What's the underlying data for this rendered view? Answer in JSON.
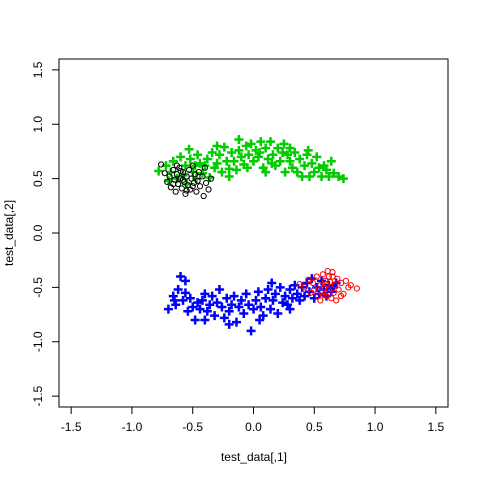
{
  "chart_data": {
    "type": "scatter",
    "xlabel": "test_data[,1]",
    "ylabel": "test_data[,2]",
    "xlim": [
      -1.6,
      1.6
    ],
    "ylim": [
      -1.6,
      1.6
    ],
    "x_ticks": [
      -1.5,
      -1.0,
      -0.5,
      0.0,
      0.5,
      1.0,
      1.5
    ],
    "y_ticks": [
      -1.5,
      -1.0,
      -0.5,
      0.0,
      0.5,
      1.0,
      1.5
    ],
    "x_tick_labels": [
      "-1.5",
      "-1.0",
      "-0.5",
      "0.0",
      "0.5",
      "1.0",
      "1.5"
    ],
    "y_tick_labels": [
      "-1.5",
      "-1.0",
      "-0.5",
      "0.0",
      "0.5",
      "1.0",
      "1.5"
    ],
    "grid": false,
    "series": [
      {
        "marker": "plus",
        "color": "#00cc00",
        "points": [
          [
            -0.78,
            0.57
          ],
          [
            -0.72,
            0.62
          ],
          [
            -0.7,
            0.48
          ],
          [
            -0.68,
            0.56
          ],
          [
            -0.66,
            0.66
          ],
          [
            -0.63,
            0.5
          ],
          [
            -0.6,
            0.7
          ],
          [
            -0.58,
            0.53
          ],
          [
            -0.56,
            0.62
          ],
          [
            -0.55,
            0.45
          ],
          [
            -0.53,
            0.77
          ],
          [
            -0.52,
            0.68
          ],
          [
            -0.5,
            0.56
          ],
          [
            -0.48,
            0.62
          ],
          [
            -0.47,
            0.5
          ],
          [
            -0.46,
            0.72
          ],
          [
            -0.44,
            0.64
          ],
          [
            -0.42,
            0.55
          ],
          [
            -0.4,
            0.62
          ],
          [
            -0.38,
            0.68
          ],
          [
            -0.36,
            0.51
          ],
          [
            -0.34,
            0.74
          ],
          [
            -0.32,
            0.6
          ],
          [
            -0.3,
            0.64
          ],
          [
            -0.28,
            0.72
          ],
          [
            -0.26,
            0.56
          ],
          [
            -0.24,
            0.79
          ],
          [
            -0.22,
            0.66
          ],
          [
            -0.2,
            0.59
          ],
          [
            -0.18,
            0.74
          ],
          [
            -0.16,
            0.66
          ],
          [
            -0.14,
            0.58
          ],
          [
            -0.12,
            0.76
          ],
          [
            -0.1,
            0.7
          ],
          [
            -0.08,
            0.63
          ],
          [
            -0.06,
            0.8
          ],
          [
            -0.04,
            0.72
          ],
          [
            -0.02,
            0.82
          ],
          [
            0.0,
            0.66
          ],
          [
            0.02,
            0.76
          ],
          [
            0.04,
            0.7
          ],
          [
            0.06,
            0.84
          ],
          [
            0.08,
            0.6
          ],
          [
            0.1,
            0.78
          ],
          [
            0.12,
            0.68
          ],
          [
            0.14,
            0.84
          ],
          [
            0.16,
            0.72
          ],
          [
            0.18,
            0.62
          ],
          [
            0.2,
            0.78
          ],
          [
            0.22,
            0.66
          ],
          [
            0.24,
            0.74
          ],
          [
            0.26,
            0.56
          ],
          [
            0.28,
            0.72
          ],
          [
            0.3,
            0.66
          ],
          [
            0.32,
            0.6
          ],
          [
            0.34,
            0.74
          ],
          [
            0.36,
            0.56
          ],
          [
            0.38,
            0.68
          ],
          [
            0.4,
            0.52
          ],
          [
            0.42,
            0.62
          ],
          [
            0.44,
            0.72
          ],
          [
            0.46,
            0.52
          ],
          [
            0.48,
            0.64
          ],
          [
            0.5,
            0.56
          ],
          [
            0.52,
            0.7
          ],
          [
            0.54,
            0.6
          ],
          [
            0.56,
            0.52
          ],
          [
            0.58,
            0.62
          ],
          [
            0.6,
            0.58
          ],
          [
            0.62,
            0.52
          ],
          [
            0.64,
            0.66
          ],
          [
            0.66,
            0.55
          ],
          [
            0.7,
            0.52
          ],
          [
            0.74,
            0.5
          ],
          [
            -0.2,
            0.52
          ],
          [
            -0.05,
            0.6
          ],
          [
            0.1,
            0.56
          ],
          [
            0.25,
            0.82
          ],
          [
            0.15,
            0.64
          ],
          [
            -0.12,
            0.86
          ],
          [
            0.3,
            0.78
          ],
          [
            0.05,
            0.74
          ],
          [
            -0.3,
            0.8
          ],
          [
            0.45,
            0.76
          ]
        ]
      },
      {
        "marker": "circle",
        "color": "#000000",
        "points": [
          [
            -0.76,
            0.63
          ],
          [
            -0.73,
            0.55
          ],
          [
            -0.71,
            0.47
          ],
          [
            -0.69,
            0.52
          ],
          [
            -0.68,
            0.42
          ],
          [
            -0.66,
            0.58
          ],
          [
            -0.65,
            0.49
          ],
          [
            -0.64,
            0.38
          ],
          [
            -0.63,
            0.54
          ],
          [
            -0.62,
            0.45
          ],
          [
            -0.61,
            0.6
          ],
          [
            -0.6,
            0.5
          ],
          [
            -0.59,
            0.41
          ],
          [
            -0.58,
            0.56
          ],
          [
            -0.57,
            0.47
          ],
          [
            -0.56,
            0.36
          ],
          [
            -0.55,
            0.52
          ],
          [
            -0.54,
            0.44
          ],
          [
            -0.53,
            0.58
          ],
          [
            -0.52,
            0.4
          ],
          [
            -0.51,
            0.5
          ],
          [
            -0.5,
            0.62
          ],
          [
            -0.49,
            0.46
          ],
          [
            -0.48,
            0.54
          ],
          [
            -0.47,
            0.38
          ],
          [
            -0.46,
            0.48
          ],
          [
            -0.45,
            0.56
          ],
          [
            -0.44,
            0.43
          ],
          [
            -0.42,
            0.52
          ],
          [
            -0.41,
            0.34
          ],
          [
            -0.4,
            0.6
          ],
          [
            -0.39,
            0.46
          ],
          [
            -0.37,
            0.4
          ],
          [
            -0.35,
            0.5
          ],
          [
            -0.6,
            0.57
          ],
          [
            -0.55,
            0.39
          ],
          [
            -0.66,
            0.45
          ],
          [
            -0.5,
            0.43
          ],
          [
            -0.58,
            0.49
          ],
          [
            -0.63,
            0.62
          ]
        ]
      },
      {
        "marker": "plus",
        "color": "#0000ff",
        "points": [
          [
            -0.7,
            -0.7
          ],
          [
            -0.66,
            -0.58
          ],
          [
            -0.64,
            -0.66
          ],
          [
            -0.62,
            -0.52
          ],
          [
            -0.6,
            -0.4
          ],
          [
            -0.58,
            -0.62
          ],
          [
            -0.56,
            -0.55
          ],
          [
            -0.54,
            -0.72
          ],
          [
            -0.52,
            -0.6
          ],
          [
            -0.5,
            -0.68
          ],
          [
            -0.48,
            -0.8
          ],
          [
            -0.46,
            -0.64
          ],
          [
            -0.44,
            -0.7
          ],
          [
            -0.42,
            -0.62
          ],
          [
            -0.4,
            -0.56
          ],
          [
            -0.38,
            -0.72
          ],
          [
            -0.36,
            -0.66
          ],
          [
            -0.34,
            -0.58
          ],
          [
            -0.32,
            -0.76
          ],
          [
            -0.3,
            -0.64
          ],
          [
            -0.28,
            -0.52
          ],
          [
            -0.26,
            -0.68
          ],
          [
            -0.24,
            -0.78
          ],
          [
            -0.22,
            -0.6
          ],
          [
            -0.2,
            -0.72
          ],
          [
            -0.18,
            -0.66
          ],
          [
            -0.16,
            -0.58
          ],
          [
            -0.14,
            -0.82
          ],
          [
            -0.12,
            -0.68
          ],
          [
            -0.1,
            -0.62
          ],
          [
            -0.08,
            -0.74
          ],
          [
            -0.06,
            -0.56
          ],
          [
            -0.04,
            -0.66
          ],
          [
            -0.02,
            -0.9
          ],
          [
            0.0,
            -0.7
          ],
          [
            0.02,
            -0.62
          ],
          [
            0.04,
            -0.54
          ],
          [
            0.06,
            -0.68
          ],
          [
            0.08,
            -0.76
          ],
          [
            0.1,
            -0.6
          ],
          [
            0.12,
            -0.52
          ],
          [
            0.14,
            -0.7
          ],
          [
            0.16,
            -0.62
          ],
          [
            0.18,
            -0.56
          ],
          [
            0.2,
            -0.74
          ],
          [
            0.22,
            -0.5
          ],
          [
            0.24,
            -0.64
          ],
          [
            0.26,
            -0.58
          ],
          [
            0.28,
            -0.66
          ],
          [
            0.3,
            -0.52
          ],
          [
            0.32,
            -0.6
          ],
          [
            0.34,
            -0.48
          ],
          [
            0.36,
            -0.56
          ],
          [
            0.38,
            -0.62
          ],
          [
            0.4,
            -0.5
          ],
          [
            0.42,
            -0.58
          ],
          [
            0.44,
            -0.46
          ],
          [
            0.46,
            -0.54
          ],
          [
            0.48,
            -0.42
          ],
          [
            0.5,
            -0.6
          ],
          [
            0.52,
            -0.5
          ],
          [
            0.54,
            -0.56
          ],
          [
            0.56,
            -0.44
          ],
          [
            0.58,
            -0.52
          ],
          [
            0.6,
            -0.58
          ],
          [
            0.62,
            -0.48
          ],
          [
            0.64,
            -0.54
          ],
          [
            0.66,
            -0.5
          ],
          [
            0.68,
            -0.46
          ],
          [
            -0.56,
            -0.44
          ],
          [
            -0.2,
            -0.84
          ],
          [
            0.05,
            -0.8
          ],
          [
            -0.4,
            -0.8
          ],
          [
            0.3,
            -0.7
          ],
          [
            -0.65,
            -0.62
          ],
          [
            0.15,
            -0.46
          ]
        ]
      },
      {
        "marker": "circle",
        "color": "#ff0000",
        "points": [
          [
            0.38,
            -0.47
          ],
          [
            0.42,
            -0.5
          ],
          [
            0.45,
            -0.43
          ],
          [
            0.47,
            -0.55
          ],
          [
            0.49,
            -0.46
          ],
          [
            0.5,
            -0.52
          ],
          [
            0.52,
            -0.4
          ],
          [
            0.53,
            -0.58
          ],
          [
            0.55,
            -0.48
          ],
          [
            0.56,
            -0.54
          ],
          [
            0.57,
            -0.38
          ],
          [
            0.58,
            -0.5
          ],
          [
            0.59,
            -0.44
          ],
          [
            0.6,
            -0.58
          ],
          [
            0.61,
            -0.35
          ],
          [
            0.62,
            -0.52
          ],
          [
            0.63,
            -0.45
          ],
          [
            0.64,
            -0.6
          ],
          [
            0.65,
            -0.4
          ],
          [
            0.66,
            -0.55
          ],
          [
            0.67,
            -0.48
          ],
          [
            0.68,
            -0.62
          ],
          [
            0.69,
            -0.42
          ],
          [
            0.7,
            -0.52
          ],
          [
            0.72,
            -0.46
          ],
          [
            0.74,
            -0.56
          ],
          [
            0.76,
            -0.44
          ],
          [
            0.78,
            -0.5
          ],
          [
            0.8,
            -0.48
          ],
          [
            0.85,
            -0.51
          ],
          [
            0.6,
            -0.47
          ],
          [
            0.55,
            -0.62
          ],
          [
            0.65,
            -0.36
          ],
          [
            0.72,
            -0.58
          ],
          [
            0.58,
            -0.57
          ],
          [
            0.62,
            -0.4
          ]
        ]
      }
    ]
  }
}
